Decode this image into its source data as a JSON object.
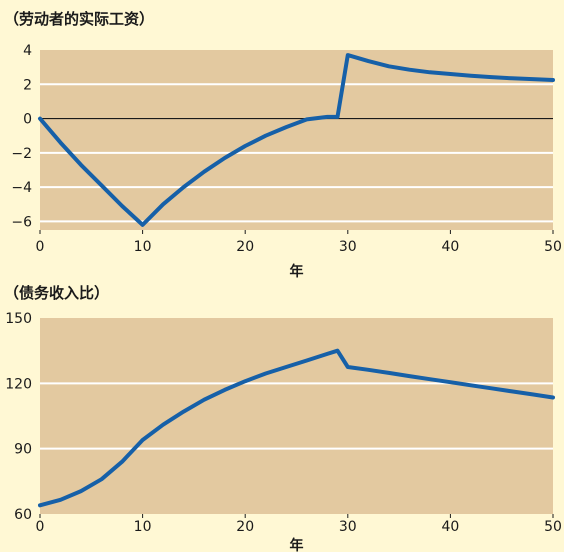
{
  "colors": {
    "background": "#fff8d4",
    "plot_area": "#e3c9a0",
    "grid": "#ffffff",
    "series": "#1660a8",
    "zero_line": "#1a1a1a"
  },
  "chart_data": [
    {
      "type": "line",
      "title": "（劳动者的实际工资）",
      "xlabel": "年",
      "ylabel": "",
      "xlim": [
        0,
        50
      ],
      "ylim": [
        -6.5,
        4
      ],
      "x_ticks": [
        0,
        10,
        20,
        30,
        40,
        50
      ],
      "y_ticks": [
        4,
        2,
        0,
        -2,
        -4,
        -6
      ],
      "grid": true,
      "zero_line": true,
      "series": [
        {
          "x": [
            0,
            2,
            4,
            6,
            8,
            10,
            12,
            14,
            16,
            18,
            20,
            22,
            24,
            26,
            28,
            29,
            30,
            32,
            34,
            36,
            38,
            40,
            42,
            44,
            46,
            48,
            50
          ],
          "y": [
            0,
            -1.4,
            -2.7,
            -3.9,
            -5.1,
            -6.2,
            -5.0,
            -4.0,
            -3.1,
            -2.3,
            -1.6,
            -1.0,
            -0.5,
            -0.05,
            0.1,
            0.1,
            3.7,
            3.35,
            3.05,
            2.85,
            2.7,
            2.6,
            2.5,
            2.42,
            2.35,
            2.3,
            2.25
          ]
        }
      ]
    },
    {
      "type": "line",
      "title": "（债务收入比）",
      "xlabel": "年",
      "ylabel": "",
      "xlim": [
        0,
        50
      ],
      "ylim": [
        60,
        150
      ],
      "x_ticks": [
        0,
        10,
        20,
        30,
        40,
        50
      ],
      "y_ticks": [
        150,
        120,
        90,
        60
      ],
      "grid": true,
      "zero_line": false,
      "series": [
        {
          "x": [
            0,
            2,
            4,
            6,
            8,
            10,
            12,
            14,
            16,
            18,
            20,
            22,
            24,
            26,
            28,
            29,
            30,
            32,
            34,
            36,
            38,
            40,
            42,
            44,
            46,
            48,
            50
          ],
          "y": [
            64,
            66.5,
            70.5,
            76,
            84,
            94,
            101,
            107,
            112.5,
            117,
            121,
            124.5,
            127.5,
            130.5,
            133.5,
            135,
            127.5,
            126.2,
            124.8,
            123.3,
            121.9,
            120.5,
            119.1,
            117.7,
            116.3,
            114.9,
            113.5
          ]
        }
      ]
    }
  ]
}
